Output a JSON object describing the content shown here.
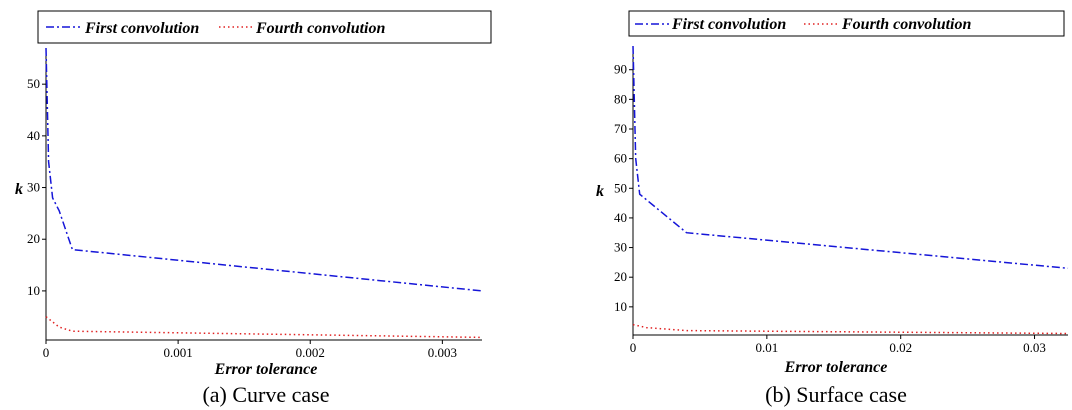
{
  "chart_data": [
    {
      "type": "line",
      "caption": "(a) Curve case",
      "xlabel": "Error tolerance",
      "ylabel": "k",
      "xlim": [
        0,
        0.0033
      ],
      "ylim": [
        0.5,
        57
      ],
      "xticks": [
        0,
        0.001,
        0.002,
        0.003
      ],
      "xtick_labels": [
        "0",
        "0.001",
        "0.002",
        "0.003"
      ],
      "yticks": [
        10,
        20,
        30,
        40,
        50
      ],
      "ytick_labels": [
        "10",
        "20",
        "30",
        "40",
        "50"
      ],
      "legend_position": "top",
      "series": [
        {
          "name": "First convolution",
          "color": "#1515d8",
          "style": "dash-dot",
          "x": [
            0,
            2e-05,
            5e-05,
            0.0001,
            0.0002,
            0.0033
          ],
          "y": [
            57,
            35,
            28,
            25.5,
            18,
            10
          ]
        },
        {
          "name": "Fourth convolution",
          "color": "#e02020",
          "style": "dotted",
          "x": [
            0,
            0.0001,
            0.0002,
            0.0033
          ],
          "y": [
            5,
            3,
            2.2,
            1
          ]
        }
      ]
    },
    {
      "type": "line",
      "caption": "(b) Surface case",
      "xlabel": "Error tolerance",
      "ylabel": "k",
      "xlim": [
        0,
        0.0325
      ],
      "ylim": [
        0.5,
        98
      ],
      "xticks": [
        0,
        0.01,
        0.02,
        0.03
      ],
      "xtick_labels": [
        "0",
        "0.01",
        "0.02",
        "0.03"
      ],
      "yticks": [
        10,
        20,
        30,
        40,
        50,
        60,
        70,
        80,
        90
      ],
      "ytick_labels": [
        "10",
        "20",
        "30",
        "40",
        "50",
        "60",
        "70",
        "80",
        "90"
      ],
      "legend_position": "top",
      "series": [
        {
          "name": "First convolution",
          "color": "#1515d8",
          "style": "dash-dot",
          "x": [
            0,
            0.0002,
            0.0005,
            0.004,
            0.0325
          ],
          "y": [
            98,
            60,
            48,
            35,
            23
          ]
        },
        {
          "name": "Fourth convolution",
          "color": "#e02020",
          "style": "dotted",
          "x": [
            0,
            0.001,
            0.004,
            0.0325
          ],
          "y": [
            4,
            3,
            2,
            1
          ]
        }
      ]
    }
  ]
}
